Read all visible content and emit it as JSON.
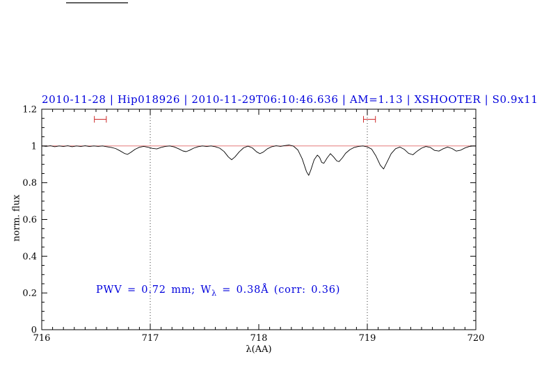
{
  "title": {
    "text": "2010-11-28 | Hip018926 | 2010-11-29T06:10:46.636 | AM=1.13 | XSHOOTER | S0.9x11"
  },
  "annotation": {
    "prefix": "PWV = 0.72 mm; W",
    "subscript": "λ",
    "suffix": " = 0.38Å (corr: 0.36)"
  },
  "colors": {
    "accent_blue": "#0000dd",
    "continuum_red": "#e06666",
    "marker_red": "#cc2929",
    "spectrum_black": "#000000",
    "vline_gray": "#333333"
  },
  "chart_data": {
    "type": "line",
    "title": "2010-11-28 | Hip018926 | 2010-11-29T06:10:46.636 | AM=1.13 | XSHOOTER | S0.9x11",
    "xlabel": "λ(AA)",
    "ylabel": "norm. flux",
    "xlim": [
      716,
      720
    ],
    "ylim": [
      0,
      1.2
    ],
    "xticks": [
      716,
      717,
      718,
      719,
      720
    ],
    "xtick_labels": [
      "716",
      "717",
      "718",
      "719",
      "720"
    ],
    "yticks": [
      0,
      0.2,
      0.4,
      0.6,
      0.8,
      1,
      1.2
    ],
    "ytick_labels": [
      "0",
      "0.2",
      "0.4",
      "0.6",
      "0.8",
      "1",
      "1.2"
    ],
    "x_minor_step": 0.1,
    "y_minor_step": 0.05,
    "grid": false,
    "legend": "none",
    "vlines": [
      717,
      719
    ],
    "continuum_y": 1.0,
    "range_markers": [
      {
        "x_center": 716.54,
        "half_width": 0.055,
        "y": 1.145,
        "cap_half_height": 0.018
      },
      {
        "x_center": 719.02,
        "half_width": 0.055,
        "y": 1.145,
        "cap_half_height": 0.018
      }
    ],
    "annotation": {
      "text": "PWV = 0.72 mm; Wλ = 0.38Å (corr: 0.36)",
      "x": 716.5,
      "y": 0.2
    },
    "series": [
      {
        "name": "spectrum",
        "color": "#000000",
        "points": [
          [
            716.0,
            1.0
          ],
          [
            716.04,
            0.998
          ],
          [
            716.08,
            1.001
          ],
          [
            716.12,
            0.996
          ],
          [
            716.16,
            1.0
          ],
          [
            716.2,
            0.997
          ],
          [
            716.24,
            1.001
          ],
          [
            716.28,
            0.996
          ],
          [
            716.32,
            1.0
          ],
          [
            716.36,
            0.997
          ],
          [
            716.4,
            1.001
          ],
          [
            716.44,
            0.997
          ],
          [
            716.48,
            1.0
          ],
          [
            716.52,
            0.998
          ],
          [
            716.56,
            1.0
          ],
          [
            716.6,
            0.996
          ],
          [
            716.64,
            0.992
          ],
          [
            716.68,
            0.986
          ],
          [
            716.72,
            0.974
          ],
          [
            716.76,
            0.96
          ],
          [
            716.79,
            0.954
          ],
          [
            716.82,
            0.965
          ],
          [
            716.86,
            0.982
          ],
          [
            716.9,
            0.993
          ],
          [
            716.94,
            0.998
          ],
          [
            716.98,
            0.993
          ],
          [
            717.02,
            0.987
          ],
          [
            717.06,
            0.984
          ],
          [
            717.1,
            0.992
          ],
          [
            717.14,
            0.998
          ],
          [
            717.18,
            1.0
          ],
          [
            717.22,
            0.995
          ],
          [
            717.26,
            0.985
          ],
          [
            717.3,
            0.973
          ],
          [
            717.33,
            0.969
          ],
          [
            717.36,
            0.976
          ],
          [
            717.4,
            0.988
          ],
          [
            717.44,
            0.996
          ],
          [
            717.48,
            1.0
          ],
          [
            717.52,
            0.997
          ],
          [
            717.56,
            1.0
          ],
          [
            717.6,
            0.996
          ],
          [
            717.64,
            0.988
          ],
          [
            717.68,
            0.97
          ],
          [
            717.72,
            0.94
          ],
          [
            717.75,
            0.925
          ],
          [
            717.78,
            0.94
          ],
          [
            717.82,
            0.968
          ],
          [
            717.86,
            0.99
          ],
          [
            717.9,
            0.999
          ],
          [
            717.94,
            0.99
          ],
          [
            717.98,
            0.968
          ],
          [
            718.01,
            0.958
          ],
          [
            718.04,
            0.966
          ],
          [
            718.08,
            0.985
          ],
          [
            718.12,
            0.996
          ],
          [
            718.16,
            1.001
          ],
          [
            718.2,
            0.998
          ],
          [
            718.24,
            1.002
          ],
          [
            718.28,
            1.005
          ],
          [
            718.32,
            0.999
          ],
          [
            718.36,
            0.978
          ],
          [
            718.4,
            0.93
          ],
          [
            718.44,
            0.86
          ],
          [
            718.46,
            0.84
          ],
          [
            718.48,
            0.87
          ],
          [
            718.51,
            0.925
          ],
          [
            718.54,
            0.95
          ],
          [
            718.56,
            0.938
          ],
          [
            718.58,
            0.91
          ],
          [
            718.6,
            0.906
          ],
          [
            718.63,
            0.935
          ],
          [
            718.66,
            0.958
          ],
          [
            718.69,
            0.94
          ],
          [
            718.72,
            0.918
          ],
          [
            718.74,
            0.915
          ],
          [
            718.77,
            0.935
          ],
          [
            718.8,
            0.96
          ],
          [
            718.84,
            0.98
          ],
          [
            718.88,
            0.992
          ],
          [
            718.92,
            0.998
          ],
          [
            718.96,
            1.0
          ],
          [
            719.0,
            0.995
          ],
          [
            719.04,
            0.983
          ],
          [
            719.08,
            0.945
          ],
          [
            719.12,
            0.895
          ],
          [
            719.15,
            0.875
          ],
          [
            719.18,
            0.91
          ],
          [
            719.22,
            0.958
          ],
          [
            719.26,
            0.985
          ],
          [
            719.3,
            0.994
          ],
          [
            719.34,
            0.982
          ],
          [
            719.38,
            0.96
          ],
          [
            719.42,
            0.952
          ],
          [
            719.46,
            0.972
          ],
          [
            719.5,
            0.988
          ],
          [
            719.54,
            0.997
          ],
          [
            719.58,
            0.992
          ],
          [
            719.62,
            0.976
          ],
          [
            719.66,
            0.972
          ],
          [
            719.7,
            0.985
          ],
          [
            719.74,
            0.994
          ],
          [
            719.78,
            0.986
          ],
          [
            719.82,
            0.972
          ],
          [
            719.86,
            0.977
          ],
          [
            719.9,
            0.989
          ],
          [
            719.94,
            0.997
          ],
          [
            719.98,
            1.0
          ],
          [
            720.0,
            0.999
          ]
        ]
      }
    ]
  }
}
